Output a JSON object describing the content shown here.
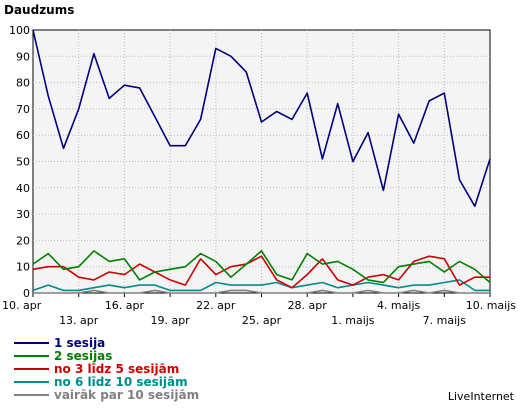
{
  "title": "Daudzums",
  "watermark": "LiveInternet",
  "chart_data": {
    "type": "line",
    "title": "Daudzums",
    "ylim": [
      0,
      100
    ],
    "yticks": [
      0,
      10,
      20,
      30,
      40,
      50,
      60,
      70,
      80,
      90,
      100
    ],
    "grid": true,
    "legend_position": "bottom-left",
    "x": [
      "10. apr",
      "11. apr",
      "12. apr",
      "13. apr",
      "14. apr",
      "15. apr",
      "16. apr",
      "17. apr",
      "18. apr",
      "19. apr",
      "20. apr",
      "21. apr",
      "22. apr",
      "23. apr",
      "24. apr",
      "25. apr",
      "26. apr",
      "27. apr",
      "28. apr",
      "29. apr",
      "30. apr",
      "1. maijs",
      "2. maijs",
      "3. maijs",
      "4. maijs",
      "5. maijs",
      "6. maijs",
      "7. maijs",
      "8. maijs",
      "9. maijs",
      "10. maijs"
    ],
    "xtick_labels": [
      {
        "index": 0,
        "label": "10. apr",
        "row": 1
      },
      {
        "index": 3,
        "label": "13. apr",
        "row": 2
      },
      {
        "index": 6,
        "label": "16. apr",
        "row": 1
      },
      {
        "index": 9,
        "label": "19. apr",
        "row": 2
      },
      {
        "index": 12,
        "label": "22. apr",
        "row": 1
      },
      {
        "index": 15,
        "label": "25. apr",
        "row": 2
      },
      {
        "index": 18,
        "label": "28. apr",
        "row": 1
      },
      {
        "index": 21,
        "label": "1. maijs",
        "row": 2
      },
      {
        "index": 24,
        "label": "4. maijs",
        "row": 1
      },
      {
        "index": 27,
        "label": "7. maijs",
        "row": 2
      },
      {
        "index": 30,
        "label": "10. maijs",
        "row": 1
      }
    ],
    "series": [
      {
        "name": "1 sesija",
        "color": "#000080",
        "values": [
          100,
          75,
          55,
          70,
          91,
          74,
          79,
          78,
          67,
          56,
          56,
          66,
          93,
          90,
          84,
          65,
          69,
          66,
          76,
          51,
          72,
          50,
          61,
          39,
          68,
          57,
          73,
          76,
          43,
          33,
          51
        ]
      },
      {
        "name": "2 sesijas",
        "color": "#008000",
        "values": [
          11,
          15,
          9,
          10,
          16,
          12,
          13,
          5,
          8,
          9,
          10,
          15,
          12,
          6,
          11,
          16,
          7,
          5,
          15,
          11,
          12,
          9,
          5,
          4,
          10,
          11,
          12,
          8,
          12,
          9,
          4
        ]
      },
      {
        "name": "no 3 līdz 5 sesijām",
        "color": "#cc0000",
        "values": [
          9,
          10,
          10,
          6,
          5,
          8,
          7,
          11,
          8,
          5,
          3,
          13,
          7,
          10,
          11,
          14,
          5,
          2,
          7,
          13,
          5,
          3,
          6,
          7,
          5,
          12,
          14,
          13,
          3,
          6,
          6
        ]
      },
      {
        "name": "no 6 līdz 10 sesijām",
        "color": "#008b8b",
        "values": [
          1,
          3,
          1,
          1,
          2,
          3,
          2,
          3,
          3,
          1,
          1,
          1,
          4,
          3,
          3,
          3,
          4,
          2,
          3,
          4,
          2,
          3,
          4,
          3,
          2,
          3,
          3,
          4,
          5,
          1,
          1
        ]
      },
      {
        "name": "vairāk par 10 sesijām",
        "color": "#808080",
        "values": [
          0,
          0,
          0,
          0,
          1,
          0,
          0,
          0,
          1,
          0,
          0,
          0,
          0,
          1,
          1,
          0,
          0,
          0,
          0,
          1,
          0,
          0,
          1,
          0,
          0,
          1,
          0,
          1,
          0,
          0,
          0
        ]
      }
    ]
  }
}
